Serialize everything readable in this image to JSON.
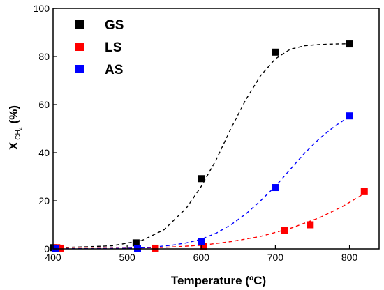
{
  "chart_data": {
    "type": "scatter",
    "xlabel": "Temperature (ºC)",
    "ylabel": {
      "main": "X",
      "sub": "CH",
      "subsub": "4",
      "unit": "(%)"
    },
    "xlim": [
      400,
      840
    ],
    "ylim": [
      0,
      100
    ],
    "xticks": [
      400,
      500,
      600,
      700,
      800
    ],
    "yticks": [
      0,
      20,
      40,
      60,
      80,
      100
    ],
    "grid": false,
    "legend_position": "top-left",
    "series": [
      {
        "name": "GS",
        "color": "#000000",
        "x": [
          400,
          512,
          600,
          700,
          800
        ],
        "y": [
          0.5,
          2.5,
          29.2,
          81.8,
          85.2
        ],
        "fit": {
          "x": [
            400,
            440,
            480,
            520,
            550,
            580,
            600,
            620,
            640,
            660,
            680,
            700,
            720,
            740,
            760,
            780,
            800
          ],
          "y": [
            0.5,
            0.8,
            1.3,
            3.5,
            8,
            17,
            26,
            37,
            50,
            62,
            72,
            79,
            83,
            84.5,
            85,
            85.2,
            85.3
          ]
        }
      },
      {
        "name": "LS",
        "color": "#ff0000",
        "x": [
          405,
          410,
          538,
          603,
          712,
          747,
          820
        ],
        "y": [
          0.5,
          0.3,
          0.3,
          1.0,
          7.8,
          10.0,
          23.8
        ],
        "fit": {
          "x": [
            400,
            450,
            500,
            550,
            600,
            640,
            680,
            720,
            760,
            790,
            820
          ],
          "y": [
            0.2,
            0.2,
            0.3,
            0.6,
            1.5,
            3,
            5.2,
            8.5,
            13,
            17.5,
            23
          ]
        }
      },
      {
        "name": "AS",
        "color": "#0000ff",
        "x": [
          403,
          514,
          600,
          700,
          800
        ],
        "y": [
          0.2,
          0.0,
          3.0,
          25.5,
          55.3
        ],
        "fit": {
          "x": [
            400,
            450,
            500,
            530,
            560,
            580,
            600,
            620,
            640,
            660,
            680,
            700,
            720,
            740,
            760,
            780,
            800
          ],
          "y": [
            0.1,
            0.1,
            0.2,
            0.6,
            1.5,
            2.5,
            4,
            6.5,
            10,
            14.5,
            20,
            26,
            33,
            40,
            46,
            51,
            55
          ]
        }
      }
    ]
  }
}
